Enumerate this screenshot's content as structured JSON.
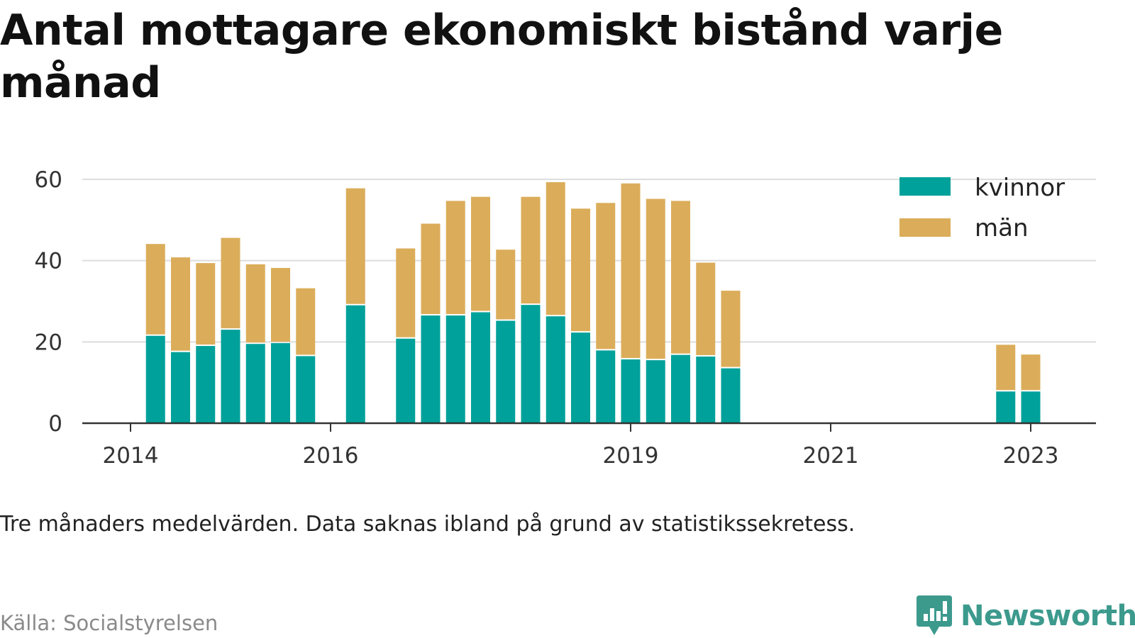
{
  "title": "Antal mottagare ekonomiskt bistånd varje månad",
  "note": "Tre månaders medelvärden. Data saknas ibland på grund av statistikssekretess.",
  "source": "Källa: Socialstyrelsen",
  "brand": "Newsworthy",
  "colors": {
    "kvinnor": "#00a19a",
    "man": "#dbad5a",
    "grid": "#dddddd",
    "axis": "#333333",
    "brand": "#3c9a8d"
  },
  "chart_data": {
    "type": "bar",
    "stacked": true,
    "ylim": [
      0,
      60
    ],
    "yticks": [
      0,
      20,
      40,
      60
    ],
    "xticks": [
      {
        "label": "2014",
        "date": "2014-01"
      },
      {
        "label": "2016",
        "date": "2016-01"
      },
      {
        "label": "2019",
        "date": "2019-01"
      },
      {
        "label": "2021",
        "date": "2021-01"
      },
      {
        "label": "2023",
        "date": "2023-01"
      }
    ],
    "legend_position": "top-right",
    "grid": true,
    "categories": [
      "2014-04",
      "2014-07",
      "2014-10",
      "2015-01",
      "2015-04",
      "2015-07",
      "2015-10",
      "2016-04",
      "2016-10",
      "2017-01",
      "2017-04",
      "2017-07",
      "2017-10",
      "2018-01",
      "2018-04",
      "2018-07",
      "2018-10",
      "2019-01",
      "2019-04",
      "2019-07",
      "2019-10",
      "2020-01",
      "2022-10",
      "2023-01"
    ],
    "series": [
      {
        "name": "kvinnor",
        "values": [
          21.5,
          17.5,
          19,
          23,
          19.5,
          19.7,
          16.5,
          29,
          20.8,
          26.5,
          26.5,
          27.3,
          25.2,
          29.1,
          26.3,
          22.3,
          17.9,
          15.7,
          15.5,
          16.8,
          16.4,
          13.5,
          7.8,
          7.8
        ]
      },
      {
        "name": "män",
        "values": [
          22.6,
          23.3,
          20.4,
          22.6,
          19.6,
          18.5,
          16.7,
          28.8,
          22.2,
          22.6,
          28.2,
          28.4,
          17.5,
          26.6,
          33.0,
          30.5,
          36.3,
          43.3,
          39.7,
          37.9,
          23.1,
          19.1,
          11.5,
          9.1
        ]
      }
    ]
  }
}
